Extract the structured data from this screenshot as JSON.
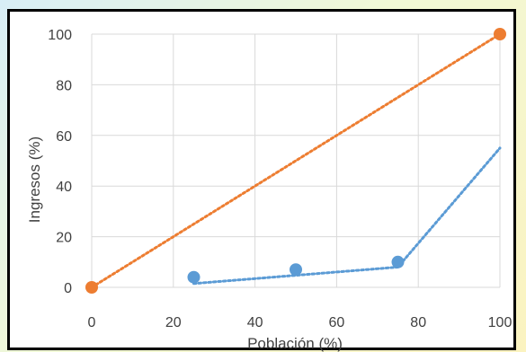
{
  "chart_data": {
    "type": "scatter",
    "xlabel": "Población (%)",
    "ylabel": "Ingresos (%)",
    "xlim": [
      0,
      100
    ],
    "ylim": [
      0,
      100
    ],
    "x_ticks": [
      0,
      20,
      40,
      60,
      80,
      100
    ],
    "y_ticks": [
      0,
      20,
      40,
      60,
      80,
      100
    ],
    "grid": true,
    "legend": "none",
    "series": [
      {
        "color": "#5b9bd5",
        "marker": "circle",
        "points": [
          {
            "x": 25,
            "y": 4
          },
          {
            "x": 50,
            "y": 7
          },
          {
            "x": 75,
            "y": 10
          },
          {
            "x": 100,
            "y": 55
          }
        ],
        "trendline": {
          "style": "dotted",
          "points": [
            {
              "x": 25,
              "y": 1.5
            },
            {
              "x": 75,
              "y": 8
            },
            {
              "x": 100,
              "y": 55
            }
          ]
        }
      },
      {
        "color": "#ed7d31",
        "marker": "circle",
        "points": [
          {
            "x": 0,
            "y": 0
          },
          {
            "x": 100,
            "y": 100
          }
        ],
        "trendline": {
          "style": "dotted",
          "points": [
            {
              "x": 0,
              "y": 0
            },
            {
              "x": 100,
              "y": 100
            }
          ]
        }
      }
    ]
  }
}
